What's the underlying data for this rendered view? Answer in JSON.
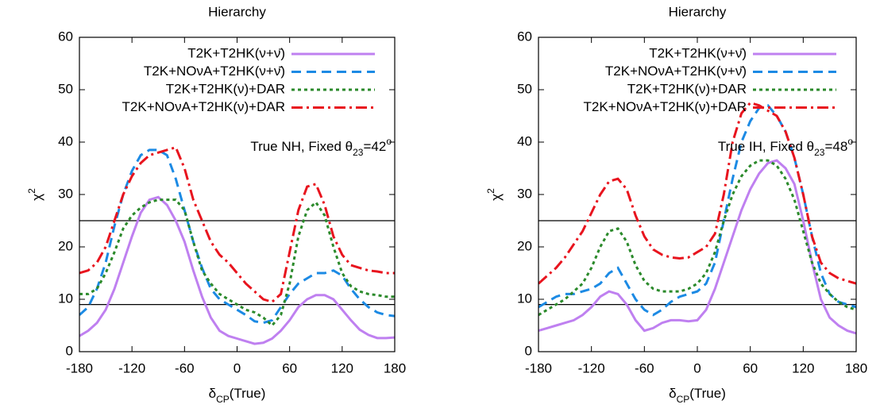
{
  "chart_data": [
    {
      "type": "line",
      "title": "Hierarchy",
      "xlabel": [
        "δ",
        "CP",
        "(True)"
      ],
      "ylabel": [
        "χ",
        "2"
      ],
      "annotation": [
        "True NH, Fixed θ",
        "23",
        "=42",
        "o"
      ],
      "xlim": [
        -180,
        180
      ],
      "ylim": [
        0,
        60
      ],
      "xticks": [
        -180,
        -120,
        -60,
        0,
        60,
        120,
        180
      ],
      "yticks": [
        0,
        10,
        20,
        30,
        40,
        50,
        60
      ],
      "hlines": [
        9,
        25
      ],
      "legend": "upper right",
      "x": [
        -180,
        -170,
        -160,
        -150,
        -140,
        -130,
        -120,
        -110,
        -100,
        -90,
        -80,
        -70,
        -60,
        -50,
        -40,
        -30,
        -20,
        -10,
        0,
        10,
        20,
        30,
        40,
        50,
        60,
        70,
        80,
        90,
        100,
        110,
        120,
        130,
        140,
        150,
        160,
        170,
        180
      ],
      "series": [
        {
          "name": "T2K+T2HK(ν+ν̄)",
          "color": "#bf80f0",
          "dash": "solid",
          "values": [
            3,
            4,
            5.5,
            8,
            12,
            17,
            22,
            26.5,
            29,
            29.5,
            28,
            25,
            21,
            15.5,
            10.5,
            6.5,
            4,
            3,
            2.5,
            2,
            1.5,
            1.7,
            2.5,
            4,
            6,
            8.5,
            10,
            10.8,
            10.8,
            10,
            8,
            6,
            4.2,
            3.2,
            2.6,
            2.6,
            2.7
          ]
        },
        {
          "name": "T2K+NOνA+T2HK(ν+ν̄)",
          "color": "#1c8ae4",
          "dash": "dashed",
          "values": [
            7,
            8.5,
            12,
            17,
            24,
            30,
            34.5,
            37.5,
            38.5,
            38.5,
            37.5,
            33,
            27,
            21,
            16,
            12,
            10,
            9,
            8,
            7,
            5.8,
            5.5,
            6,
            8.5,
            11,
            13,
            14,
            15,
            15,
            15.5,
            14.5,
            12,
            10,
            8.5,
            7.5,
            7,
            6.8
          ]
        },
        {
          "name": "T2K+T2HK(ν)+DAR",
          "color": "#2b8a2b",
          "dash": "dotted",
          "values": [
            11,
            11,
            12,
            15,
            19,
            23.5,
            26,
            27.5,
            28.5,
            29,
            29,
            29,
            27,
            21,
            15.5,
            13,
            11,
            10,
            9,
            8,
            7.5,
            6.5,
            5,
            7,
            13,
            22,
            27,
            28.5,
            26,
            20,
            15,
            12.5,
            11.5,
            11,
            10.8,
            10.5,
            10.5
          ]
        },
        {
          "name": "T2K+NOνA+T2HK(ν)+DAR",
          "color": "#e8141e",
          "dash": "dashdot",
          "values": [
            15,
            15.5,
            17,
            20,
            25,
            30,
            33.5,
            36,
            37.5,
            38,
            38.5,
            39,
            35,
            29,
            25,
            21,
            18.5,
            17,
            15,
            13,
            11.5,
            10,
            9.5,
            11,
            19,
            27,
            31.5,
            32,
            28,
            22,
            18.5,
            16.5,
            16,
            15.5,
            15.3,
            15,
            15
          ]
        }
      ]
    },
    {
      "type": "line",
      "title": "Hierarchy",
      "xlabel": [
        "δ",
        "CP",
        "(True)"
      ],
      "ylabel": [
        "χ",
        "2"
      ],
      "annotation": [
        "True IH, Fixed θ",
        "23",
        "=48",
        "o"
      ],
      "xlim": [
        -180,
        180
      ],
      "ylim": [
        0,
        60
      ],
      "xticks": [
        -180,
        -120,
        -60,
        0,
        60,
        120,
        180
      ],
      "yticks": [
        0,
        10,
        20,
        30,
        40,
        50,
        60
      ],
      "hlines": [
        9,
        25
      ],
      "legend": "upper right",
      "x": [
        -180,
        -170,
        -160,
        -150,
        -140,
        -130,
        -120,
        -110,
        -100,
        -90,
        -80,
        -70,
        -60,
        -50,
        -40,
        -30,
        -20,
        -10,
        0,
        10,
        20,
        30,
        40,
        50,
        60,
        70,
        80,
        90,
        100,
        110,
        120,
        130,
        140,
        150,
        160,
        170,
        180
      ],
      "series": [
        {
          "name": "T2K+T2HK(ν+ν̄)",
          "color": "#bf80f0",
          "dash": "solid",
          "values": [
            4,
            4.5,
            5,
            5.5,
            6,
            7,
            8.5,
            10.5,
            11.5,
            11,
            9,
            6,
            4,
            4.5,
            5.5,
            6,
            6,
            5.8,
            6,
            8,
            12,
            17,
            22,
            27,
            31,
            34,
            36,
            36.5,
            35,
            32,
            25,
            17,
            10,
            6.5,
            5,
            4,
            3.5
          ]
        },
        {
          "name": "T2K+NOνA+T2HK(ν+ν̄)",
          "color": "#1c8ae4",
          "dash": "dashed",
          "values": [
            8.5,
            9.5,
            10.5,
            11,
            11,
            11.5,
            12,
            13,
            15,
            16,
            13,
            10,
            8,
            7,
            8,
            9.5,
            10.5,
            11,
            11.5,
            13,
            17,
            25,
            33,
            40,
            44,
            46.5,
            47,
            45,
            42,
            37,
            30,
            22,
            15,
            11,
            9.5,
            9,
            8.5
          ]
        },
        {
          "name": "T2K+T2HK(ν)+DAR",
          "color": "#2b8a2b",
          "dash": "dotted",
          "values": [
            7,
            8,
            9,
            10,
            11.5,
            13,
            16,
            20,
            23,
            23.5,
            21,
            16.5,
            13.5,
            12,
            11.5,
            11.5,
            11.5,
            12,
            13,
            15,
            19,
            25,
            30,
            33.5,
            35.5,
            36.5,
            36.5,
            35.5,
            33,
            29,
            23,
            17,
            13,
            11,
            9.5,
            8.5,
            8
          ]
        },
        {
          "name": "T2K+NOνA+T2HK(ν)+DAR",
          "color": "#e8141e",
          "dash": "dashdot",
          "values": [
            13,
            14.5,
            16,
            18,
            20.5,
            23,
            26.5,
            30,
            32.5,
            33,
            31,
            26,
            22,
            19.5,
            18.5,
            18,
            17.8,
            18,
            19,
            20,
            22.5,
            30,
            40,
            45.5,
            47.5,
            47,
            46,
            45,
            42,
            37,
            30,
            22,
            17,
            15,
            14,
            13.5,
            13
          ]
        }
      ]
    }
  ]
}
